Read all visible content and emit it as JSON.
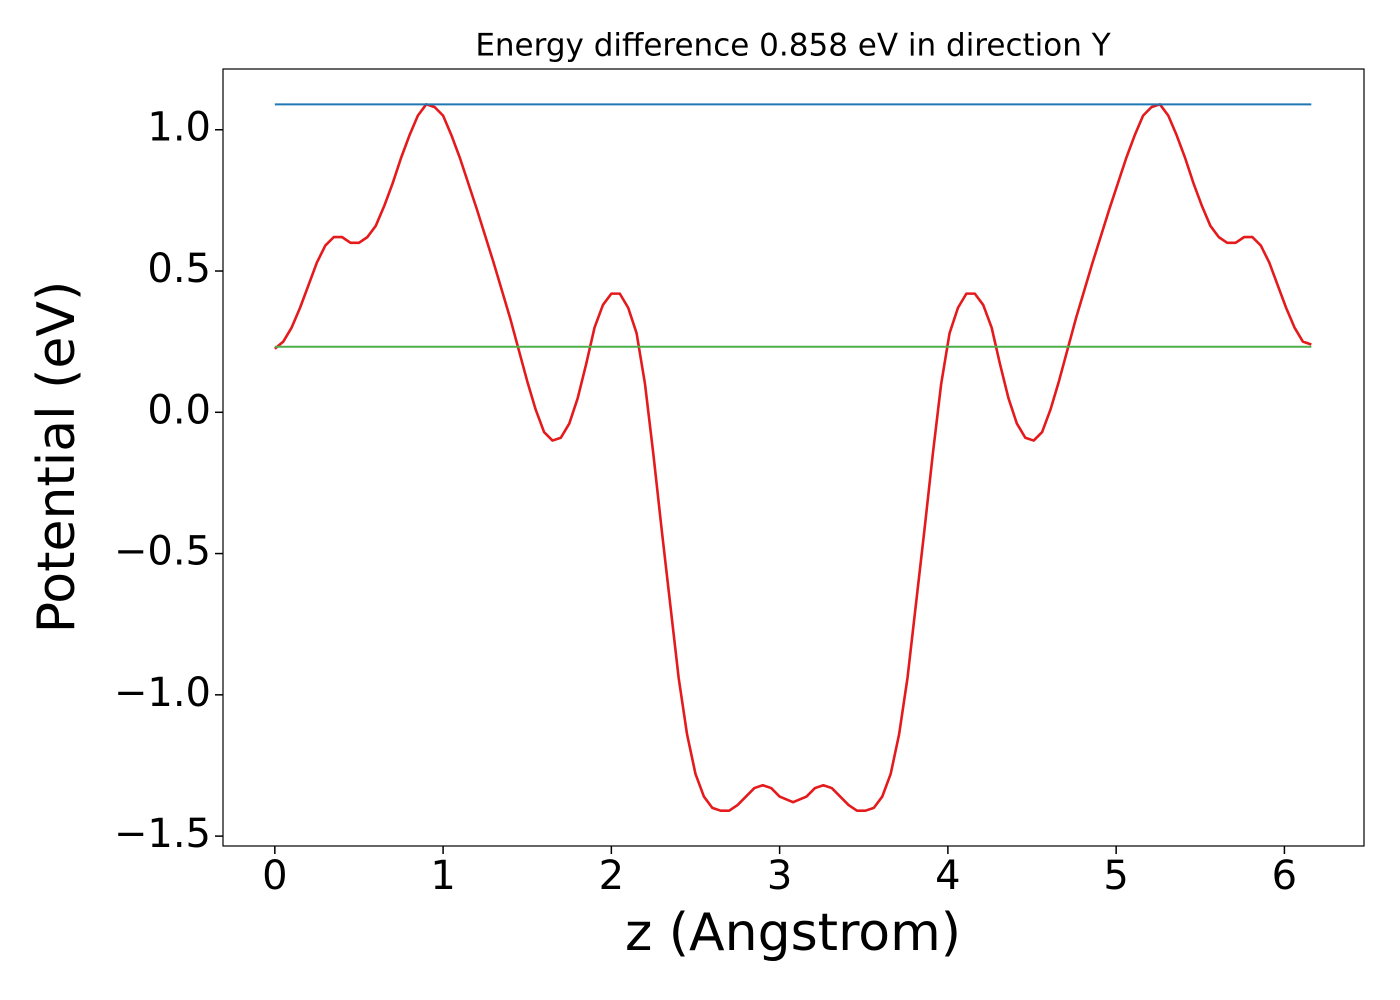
{
  "chart_data": {
    "type": "line",
    "title": "Energy difference 0.858 eV in direction Y",
    "xlabel": "z (Angstrom)",
    "ylabel": "Potential (eV)",
    "xlim": [
      -0.308,
      6.473
    ],
    "ylim": [
      -1.535,
      1.215
    ],
    "xticks": [
      0,
      1,
      2,
      3,
      4,
      5,
      6
    ],
    "yticks": [
      {
        "value": -1.5,
        "label": "−1.5"
      },
      {
        "value": -1.0,
        "label": "−1.0"
      },
      {
        "value": -0.5,
        "label": "−0.5"
      },
      {
        "value": 0,
        "label": "0.0"
      },
      {
        "value": 0.5,
        "label": "0.5"
      },
      {
        "value": 1.0,
        "label": "1.0"
      }
    ],
    "series": [
      {
        "color": "#e41a1c",
        "x": [
          0,
          0.05,
          0.1,
          0.15,
          0.2,
          0.25,
          0.3,
          0.35,
          0.4,
          0.45,
          0.5,
          0.55,
          0.6,
          0.65,
          0.7,
          0.75,
          0.8,
          0.85,
          0.9,
          0.95,
          1.0,
          1.05,
          1.1,
          1.2,
          1.3,
          1.4,
          1.5,
          1.55,
          1.6,
          1.65,
          1.7,
          1.75,
          1.8,
          1.85,
          1.9,
          1.95,
          2.0,
          2.05,
          2.1,
          2.15,
          2.2,
          2.25,
          2.3,
          2.35,
          2.4,
          2.45,
          2.5,
          2.55,
          2.6,
          2.65,
          2.7,
          2.75,
          2.8,
          2.85,
          2.9,
          2.95,
          3.0,
          3.08,
          3.16,
          3.21,
          3.26,
          3.31,
          3.36,
          3.41,
          3.46,
          3.51,
          3.56,
          3.61,
          3.66,
          3.71,
          3.76,
          3.81,
          3.86,
          3.91,
          3.96,
          4.01,
          4.06,
          4.11,
          4.16,
          4.21,
          4.26,
          4.31,
          4.36,
          4.41,
          4.46,
          4.51,
          4.56,
          4.61,
          4.66,
          4.76,
          4.86,
          4.96,
          5.06,
          5.11,
          5.16,
          5.21,
          5.26,
          5.31,
          5.36,
          5.41,
          5.46,
          5.51,
          5.56,
          5.61,
          5.66,
          5.71,
          5.76,
          5.81,
          5.86,
          5.91,
          5.96,
          6.01,
          6.06,
          6.11,
          6.16
        ],
        "values": [
          0.225,
          0.25,
          0.3,
          0.37,
          0.45,
          0.53,
          0.59,
          0.62,
          0.62,
          0.6,
          0.6,
          0.62,
          0.66,
          0.73,
          0.81,
          0.9,
          0.98,
          1.05,
          1.09,
          1.08,
          1.05,
          0.98,
          0.9,
          0.72,
          0.53,
          0.33,
          0.11,
          0.01,
          -0.07,
          -0.1,
          -0.09,
          -0.04,
          0.05,
          0.17,
          0.3,
          0.38,
          0.42,
          0.42,
          0.37,
          0.28,
          0.1,
          -0.15,
          -0.42,
          -0.68,
          -0.94,
          -1.14,
          -1.28,
          -1.36,
          -1.4,
          -1.41,
          -1.41,
          -1.39,
          -1.36,
          -1.33,
          -1.32,
          -1.33,
          -1.36,
          -1.38,
          -1.36,
          -1.33,
          -1.32,
          -1.33,
          -1.36,
          -1.39,
          -1.41,
          -1.41,
          -1.4,
          -1.36,
          -1.28,
          -1.14,
          -0.94,
          -0.68,
          -0.42,
          -0.15,
          0.1,
          0.28,
          0.37,
          0.42,
          0.42,
          0.38,
          0.3,
          0.17,
          0.05,
          -0.04,
          -0.09,
          -0.1,
          -0.07,
          0.01,
          0.11,
          0.33,
          0.53,
          0.72,
          0.9,
          0.98,
          1.05,
          1.08,
          1.09,
          1.05,
          0.98,
          0.9,
          0.81,
          0.73,
          0.66,
          0.62,
          0.6,
          0.6,
          0.62,
          0.62,
          0.59,
          0.53,
          0.45,
          0.37,
          0.3,
          0.25,
          0.24
        ]
      },
      {
        "color": "#1f77b4",
        "x": [
          0,
          6.16
        ],
        "values": [
          1.09,
          1.09
        ]
      },
      {
        "color": "#4daf4a",
        "x": [
          0,
          6.16
        ],
        "values": [
          0.232,
          0.232
        ]
      }
    ]
  }
}
